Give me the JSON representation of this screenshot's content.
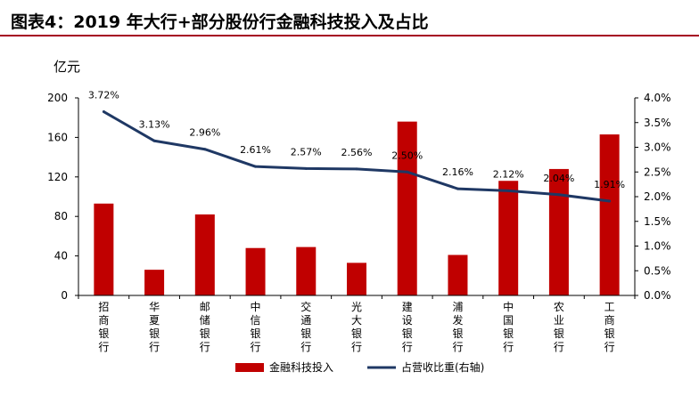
{
  "header": {
    "title": "图表4：2019 年大行+部分股份行金融科技投入及占比"
  },
  "chart_data": {
    "type": "bar",
    "categories": [
      "招商银行",
      "华夏银行",
      "邮储银行",
      "中信银行",
      "交通银行",
      "光大银行",
      "建设银行",
      "浦发银行",
      "中国银行",
      "农业银行",
      "工商银行"
    ],
    "series": [
      {
        "name": "金融科技投入",
        "type": "bar",
        "axis": "left",
        "color": "#c00000",
        "values": [
          93,
          26,
          82,
          48,
          49,
          33,
          176,
          41,
          116,
          128,
          163
        ]
      },
      {
        "name": "占营收比重(右轴)",
        "type": "line",
        "axis": "right",
        "color": "#1f3864",
        "values": [
          3.72,
          3.13,
          2.96,
          2.61,
          2.57,
          2.56,
          2.5,
          2.16,
          2.12,
          2.04,
          1.91
        ],
        "labels": [
          "3.72%",
          "3.13%",
          "2.96%",
          "2.61%",
          "2.57%",
          "2.56%",
          "2.50%",
          "2.16%",
          "2.12%",
          "2.04%",
          "1.91%"
        ]
      }
    ],
    "ylabel": "亿元",
    "ylim": [
      0,
      200
    ],
    "yticks": [
      "0",
      "40",
      "80",
      "120",
      "160",
      "200"
    ],
    "y2lim": [
      0,
      4.0
    ],
    "y2ticks": [
      "0.0%",
      "0.5%",
      "1.0%",
      "1.5%",
      "2.0%",
      "2.5%",
      "3.0%",
      "3.5%",
      "4.0%"
    ],
    "grid": false,
    "legend": "bottom"
  }
}
